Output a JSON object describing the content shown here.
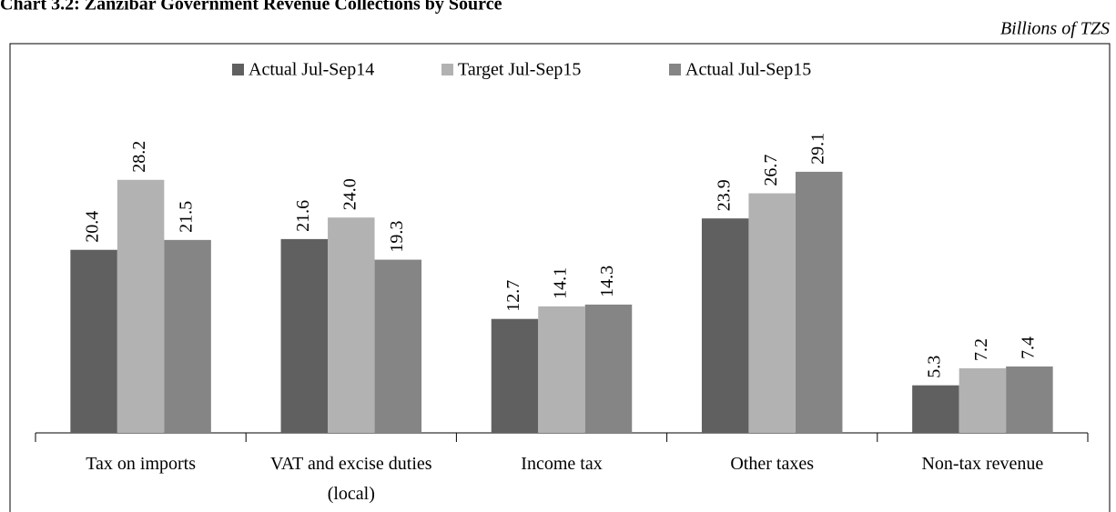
{
  "chart_data": {
    "type": "bar",
    "title": "Chart 3.2: Zanzibar Government Revenue Collections by Source",
    "subtitle": "Billions of TZS",
    "categories": [
      "Tax on imports",
      "VAT and excise duties (local)",
      "Income tax",
      "Other taxes",
      "Non-tax revenue"
    ],
    "series": [
      {
        "name": "Actual Jul-Sep14",
        "color": "#606060",
        "values": [
          20.4,
          21.6,
          12.7,
          23.9,
          5.3
        ],
        "value_labels": [
          "20.4",
          "21.6",
          "12.7",
          "23.9",
          "5.3"
        ]
      },
      {
        "name": "Target Jul-Sep15",
        "color": "#b2b2b2",
        "values": [
          28.2,
          24.0,
          14.1,
          26.7,
          7.2
        ],
        "value_labels": [
          "28.2",
          "24.0",
          "14.1",
          "26.7",
          "7.2"
        ]
      },
      {
        "name": "Actual Jul-Sep15",
        "color": "#858585",
        "values": [
          21.5,
          19.3,
          14.3,
          29.1,
          7.4
        ],
        "value_labels": [
          "21.5",
          "19.3",
          "14.3",
          "29.1",
          "7.4"
        ]
      }
    ],
    "ylim": [
      0,
      30
    ],
    "legend": "top"
  }
}
